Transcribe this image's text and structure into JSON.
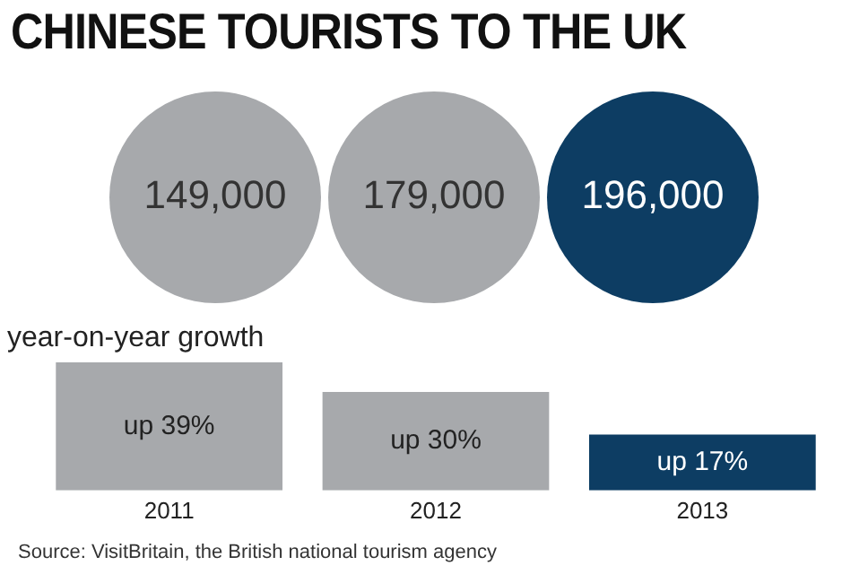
{
  "chart_data": [
    {
      "type": "other",
      "title": "CHINESE TOURISTS TO THE UK",
      "values": [
        149000,
        179000,
        196000
      ],
      "value_labels": [
        "149,000",
        "179,000",
        "196,000"
      ],
      "colors": [
        "#a7a9ac",
        "#a7a9ac",
        "#0d3d63"
      ]
    },
    {
      "type": "bar",
      "title": "year-on-year growth",
      "categories": [
        "2011",
        "2012",
        "2013"
      ],
      "values": [
        39,
        30,
        17
      ],
      "value_labels": [
        "up 39%",
        "up 30%",
        "up 17%"
      ],
      "colors": [
        "#a7a9ac",
        "#a7a9ac",
        "#0d3d63"
      ],
      "ylim": [
        0,
        39
      ],
      "tick_labels": "x",
      "grid": false,
      "legend": false,
      "annotations": [
        "Source: VisitBritain, the British national tourism agency"
      ]
    }
  ]
}
